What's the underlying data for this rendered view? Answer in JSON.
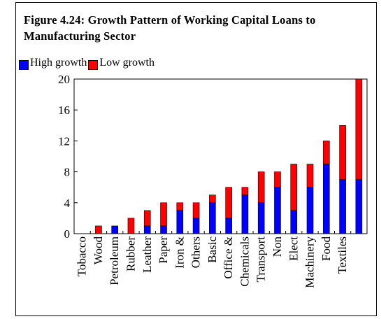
{
  "title": "Figure 4.24: Growth Pattern of Working Capital Loans to Manufacturing Sector",
  "legend": {
    "high_label": "High growth",
    "low_label": "Low growth"
  },
  "colors": {
    "high": "#0000ff",
    "low": "#ff0000"
  },
  "chart_data": {
    "type": "bar",
    "stacked": true,
    "title": "Figure 4.24: Growth Pattern of Working Capital Loans to Manufacturing Sector",
    "categories": [
      "Tobacco",
      "Wood",
      "Petroleum",
      "Rubber",
      "Leather",
      "Paper",
      "Iron &",
      "Others",
      "Basic",
      "Office &",
      "Chemicals",
      "Transport",
      "Non",
      "Elect",
      "Machinery",
      "Food",
      "Textiles",
      ""
    ],
    "series": [
      {
        "name": "High growth",
        "values": [
          0,
          0,
          1,
          0,
          1,
          1,
          3,
          2,
          4,
          2,
          5,
          4,
          6,
          3,
          6,
          9,
          7,
          7
        ]
      },
      {
        "name": "Low growth",
        "values": [
          0,
          1,
          0,
          2,
          2,
          3,
          1,
          2,
          1,
          4,
          1,
          4,
          2,
          6,
          3,
          3,
          7,
          13
        ]
      }
    ],
    "yticks": [
      0,
      4,
      8,
      12,
      16,
      20
    ],
    "ylim": [
      0,
      20
    ],
    "xlabel": "",
    "ylabel": "",
    "grid": false,
    "legend_position": "top-left"
  }
}
